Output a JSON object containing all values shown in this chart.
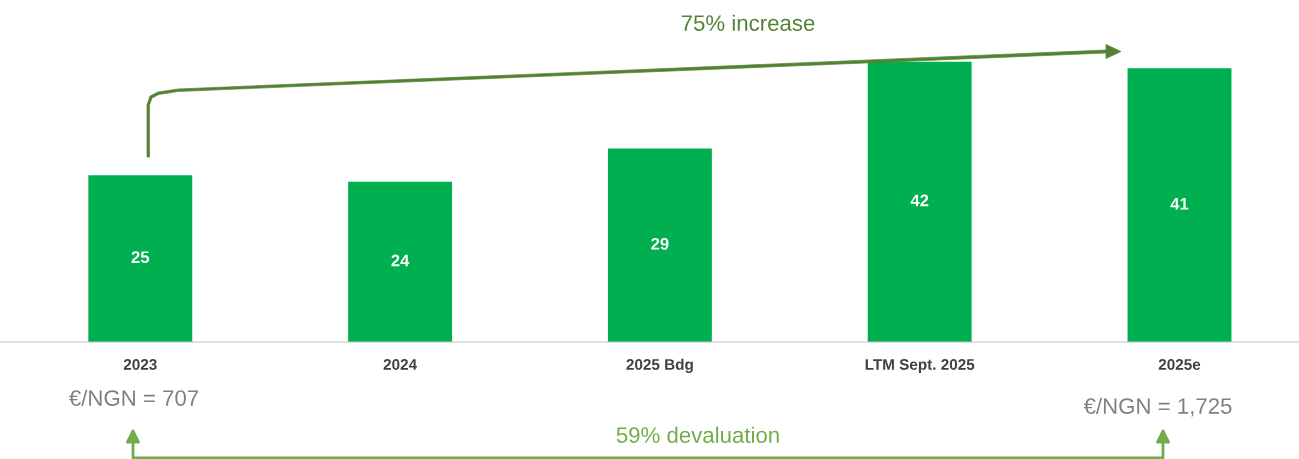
{
  "chart_data": {
    "type": "bar",
    "categories": [
      "2023",
      "2024",
      "2025 Bdg",
      "LTM Sept. 2025",
      "2025e"
    ],
    "values": [
      25,
      24,
      29,
      42,
      41
    ],
    "color": "#00b050",
    "data_labels": true,
    "grid": false,
    "legend": false,
    "annotations": [
      "75% increase",
      "€/NGN = 707",
      "€/NGN = 1,725",
      "59% devaluation"
    ]
  }
}
